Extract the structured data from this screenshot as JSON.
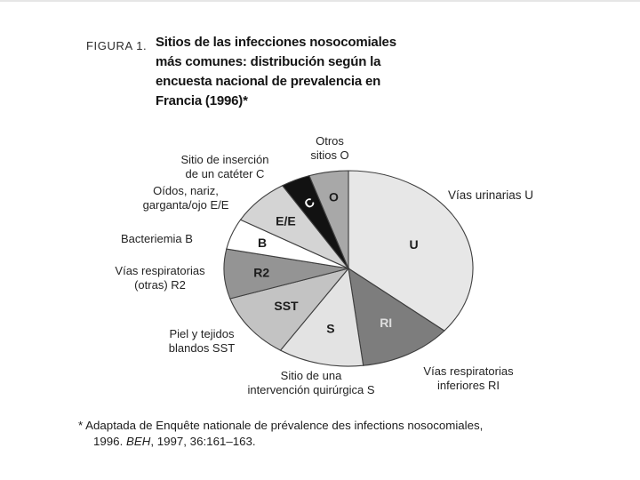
{
  "figure": {
    "label": "FIGURA 1.",
    "title_lines": [
      "Sitios de las infecciones nosocomiales",
      "más comunes: distribución según la",
      "encuesta nacional de prevalencia en",
      "Francia (1996)*"
    ],
    "footnote": {
      "line1": "* Adaptada de Enquête nationale de prévalence des infections nosocomiales,",
      "line2_pre": "1996. ",
      "line2_italic": "BEH",
      "line2_post": ", 1997, 36:161–163."
    }
  },
  "chart_data": {
    "type": "pie",
    "title": "Sitios de las infecciones nosocomiales más comunes: distribución según la encuesta nacional de prevalencia en Francia (1996)",
    "legend_position": "labels-around-pie",
    "start_angle_deg": 0,
    "direction": "clockwise",
    "outline_color": "#3f3f3f",
    "slices": [
      {
        "code": "U",
        "label": "Vías urinarias U",
        "value_pct": 36.0,
        "color": "#e7e7e7",
        "letter_color": "#1c1c1c"
      },
      {
        "code": "RI",
        "label": "Vías respiratorias inferiores RI",
        "value_pct": 12.1,
        "color": "#7d7d7d",
        "letter_color": "#dedede"
      },
      {
        "code": "S",
        "label": "Sitio de una intervención quirúrgica S",
        "value_pct": 11.1,
        "color": "#e3e3e3",
        "letter_color": "#1c1c1c"
      },
      {
        "code": "SST",
        "label": "Piel y tejidos blandos SST",
        "value_pct": 10.8,
        "color": "#c3c3c3",
        "letter_color": "#1c1c1c"
      },
      {
        "code": "R2",
        "label": "Vías respiratorias (otras) R2",
        "value_pct": 8.2,
        "color": "#949494",
        "letter_color": "#1c1c1c"
      },
      {
        "code": "B",
        "label": "Bacteriemia B",
        "value_pct": 5.1,
        "color": "#ffffff",
        "letter_color": "#1c1c1c"
      },
      {
        "code": "E/E",
        "label": "Oídos, nariz, garganta/ojo E/E",
        "value_pct": 7.8,
        "color": "#d4d4d4",
        "letter_color": "#1c1c1c"
      },
      {
        "code": "C",
        "label": "Sitio de inserción de un catéter C",
        "value_pct": 3.8,
        "color": "#121212",
        "letter_color": "#ffffff",
        "letter_rotate_deg": -38
      },
      {
        "code": "O",
        "label": "Otros sitios O",
        "value_pct": 5.1,
        "color": "#a8a8a8",
        "letter_color": "#1c1c1c"
      }
    ]
  },
  "labels": {
    "otros": {
      "line1": "Otros",
      "line2": "sitios O"
    },
    "urinarias": {
      "line1": "Vías urinarias U"
    },
    "cateter": {
      "line1": "Sitio de inserción",
      "line2": "de un catéter C"
    },
    "oidos": {
      "line1": "Oídos, nariz,",
      "line2": "garganta/ojo E/E"
    },
    "bacteriemia": {
      "line1": "Bacteriemia B"
    },
    "resp_otras": {
      "line1": "Vías respiratorias",
      "line2": "(otras) R2"
    },
    "piel": {
      "line1": "Piel y tejidos",
      "line2": "blandos SST"
    },
    "quirurgica": {
      "line1": "Sitio de una",
      "line2": "intervención quirúrgica S"
    },
    "resp_inf": {
      "line1": "Vías respiratorias",
      "line2": "inferiores RI"
    }
  }
}
